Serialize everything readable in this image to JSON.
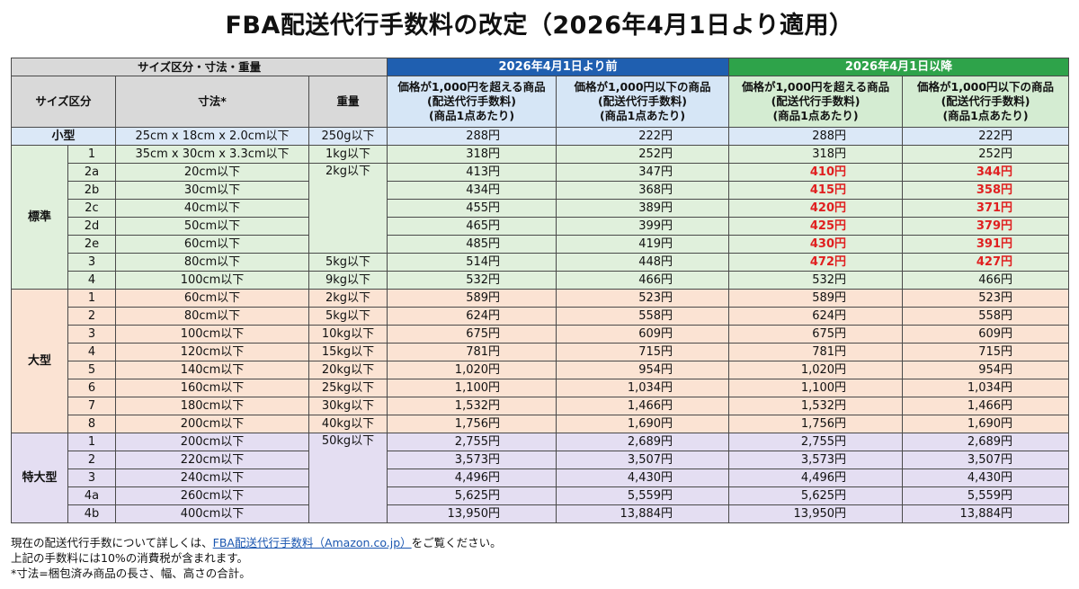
{
  "title": "FBA配送代行手数料の改定（2026年4月1日より適用）",
  "table": {
    "header": {
      "group_spec": "サイズ区分・寸法・重量",
      "group_before": "2026年4月1日より前",
      "group_after": "2026年4月1日以降",
      "col_size": "サイズ区分",
      "col_dim": "寸法*",
      "col_weight": "重量",
      "col_over_l1": "価格が1,000円を超える商品",
      "col_under_l1": "価格が1,000円以下の商品",
      "col_l2": "(配送代行手数料)",
      "col_l3": "(商品1点あたり)"
    },
    "categories": {
      "small": "小型",
      "standard": "標準",
      "large": "大型",
      "xlarge": "特大型"
    },
    "rows": [
      {
        "sub": "",
        "dim": "25cm x 18cm x 2.0cm以下",
        "weight": "250g以下",
        "p1": "288円",
        "p2": "222円",
        "p3": "288円",
        "p4": "222円"
      },
      {
        "sub": "1",
        "dim": "35cm x 30cm x 3.3cm以下",
        "weight": "1kg以下",
        "p1": "318円",
        "p2": "252円",
        "p3": "318円",
        "p4": "252円"
      },
      {
        "sub": "2a",
        "dim": "20cm以下",
        "weight": "2kg以下",
        "p1": "413円",
        "p2": "347円",
        "p3": "410円",
        "p4": "344円"
      },
      {
        "sub": "2b",
        "dim": "30cm以下",
        "weight": "",
        "p1": "434円",
        "p2": "368円",
        "p3": "415円",
        "p4": "358円"
      },
      {
        "sub": "2c",
        "dim": "40cm以下",
        "weight": "",
        "p1": "455円",
        "p2": "389円",
        "p3": "420円",
        "p4": "371円"
      },
      {
        "sub": "2d",
        "dim": "50cm以下",
        "weight": "",
        "p1": "465円",
        "p2": "399円",
        "p3": "425円",
        "p4": "379円"
      },
      {
        "sub": "2e",
        "dim": "60cm以下",
        "weight": "",
        "p1": "485円",
        "p2": "419円",
        "p3": "430円",
        "p4": "391円"
      },
      {
        "sub": "3",
        "dim": "80cm以下",
        "weight": "5kg以下",
        "p1": "514円",
        "p2": "448円",
        "p3": "472円",
        "p4": "427円"
      },
      {
        "sub": "4",
        "dim": "100cm以下",
        "weight": "9kg以下",
        "p1": "532円",
        "p2": "466円",
        "p3": "532円",
        "p4": "466円"
      },
      {
        "sub": "1",
        "dim": "60cm以下",
        "weight": "2kg以下",
        "p1": "589円",
        "p2": "523円",
        "p3": "589円",
        "p4": "523円"
      },
      {
        "sub": "2",
        "dim": "80cm以下",
        "weight": "5kg以下",
        "p1": "624円",
        "p2": "558円",
        "p3": "624円",
        "p4": "558円"
      },
      {
        "sub": "3",
        "dim": "100cm以下",
        "weight": "10kg以下",
        "p1": "675円",
        "p2": "609円",
        "p3": "675円",
        "p4": "609円"
      },
      {
        "sub": "4",
        "dim": "120cm以下",
        "weight": "15kg以下",
        "p1": "781円",
        "p2": "715円",
        "p3": "781円",
        "p4": "715円"
      },
      {
        "sub": "5",
        "dim": "140cm以下",
        "weight": "20kg以下",
        "p1": "1,020円",
        "p2": "954円",
        "p3": "1,020円",
        "p4": "954円"
      },
      {
        "sub": "6",
        "dim": "160cm以下",
        "weight": "25kg以下",
        "p1": "1,100円",
        "p2": "1,034円",
        "p3": "1,100円",
        "p4": "1,034円"
      },
      {
        "sub": "7",
        "dim": "180cm以下",
        "weight": "30kg以下",
        "p1": "1,532円",
        "p2": "1,466円",
        "p3": "1,532円",
        "p4": "1,466円"
      },
      {
        "sub": "8",
        "dim": "200cm以下",
        "weight": "40kg以下",
        "p1": "1,756円",
        "p2": "1,690円",
        "p3": "1,756円",
        "p4": "1,690円"
      },
      {
        "sub": "1",
        "dim": "200cm以下",
        "weight": "50kg以下",
        "p1": "2,755円",
        "p2": "2,689円",
        "p3": "2,755円",
        "p4": "2,689円"
      },
      {
        "sub": "2",
        "dim": "220cm以下",
        "weight": "",
        "p1": "3,573円",
        "p2": "3,507円",
        "p3": "3,573円",
        "p4": "3,507円"
      },
      {
        "sub": "3",
        "dim": "240cm以下",
        "weight": "",
        "p1": "4,496円",
        "p2": "4,430円",
        "p3": "4,496円",
        "p4": "4,430円"
      },
      {
        "sub": "4a",
        "dim": "260cm以下",
        "weight": "",
        "p1": "5,625円",
        "p2": "5,559円",
        "p3": "5,625円",
        "p4": "5,559円"
      },
      {
        "sub": "4b",
        "dim": "400cm以下",
        "weight": "",
        "p1": "13,950円",
        "p2": "13,884円",
        "p3": "13,950円",
        "p4": "13,884円"
      }
    ]
  },
  "notes": {
    "line1_prefix": "現在の配送代行手数について詳しくは、",
    "line1_link": "FBA配送代行手数料（Amazon.co.jp）",
    "line1_suffix": "をご覧ください。",
    "line2": "上記の手数料には10%の消費税が含まれます。",
    "line3": "*寸法=梱包済み商品の長さ、幅、高さの合計。"
  },
  "colors": {
    "before_header": "#1f5fb0",
    "after_header": "#2ea34a",
    "highlight_price": "#e02020",
    "small_row": "#dbe8f7",
    "standard_row": "#e0f0dc",
    "large_row": "#fbe3d3",
    "xlarge_row": "#e4def2",
    "link": "#1a56b0"
  }
}
